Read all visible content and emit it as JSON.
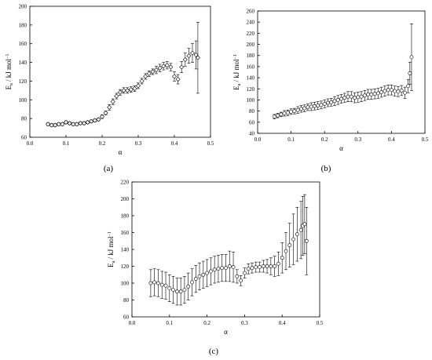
{
  "figure": {
    "panels": [
      {
        "id": "a",
        "label": "(a)"
      },
      {
        "id": "b",
        "label": "(b)"
      },
      {
        "id": "c",
        "label": "(c)"
      }
    ]
  },
  "chart_data": [
    {
      "type": "scatter",
      "panel_label": "(a)",
      "xlabel": "α",
      "ylabel": {
        "main": "E",
        "sub": "a",
        "text": " / kJ mol",
        "sup": "−1"
      },
      "xlim": [
        0.0,
        0.5
      ],
      "ylim": [
        60,
        200
      ],
      "xticks": [
        "0.0",
        "0.1",
        "0.2",
        "0.3",
        "0.4",
        "0.5"
      ],
      "yticks": [
        "60",
        "80",
        "100",
        "120",
        "140",
        "160",
        "180",
        "200"
      ],
      "grid": false,
      "series": [
        {
          "marker": "open-diamond",
          "x": [
            0.05,
            0.06,
            0.07,
            0.08,
            0.09,
            0.1,
            0.11,
            0.12,
            0.13,
            0.14,
            0.15,
            0.16,
            0.17,
            0.18,
            0.19,
            0.2,
            0.21,
            0.22,
            0.23,
            0.24,
            0.25,
            0.26,
            0.27,
            0.28,
            0.29,
            0.3,
            0.31,
            0.32,
            0.33,
            0.34,
            0.35,
            0.36,
            0.37,
            0.38,
            0.39,
            0.4,
            0.41,
            0.42,
            0.43,
            0.44,
            0.45,
            0.46,
            0.465
          ],
          "y": [
            74,
            73,
            73,
            74,
            74,
            76,
            75,
            74,
            74,
            75,
            75,
            76,
            77,
            78,
            79,
            82,
            86,
            92,
            98,
            104,
            108,
            110,
            110,
            111,
            112,
            115,
            120,
            125,
            128,
            130,
            132,
            134,
            136,
            137,
            135,
            125,
            122,
            135,
            143,
            147,
            150,
            148,
            145
          ],
          "err": [
            1.5,
            1.5,
            1.5,
            1.5,
            1.5,
            1.5,
            1.5,
            1.5,
            1.5,
            1.5,
            1.5,
            1.5,
            1.5,
            1.5,
            1.5,
            2,
            2,
            3,
            3,
            3,
            3,
            3,
            3,
            3,
            3,
            3,
            3,
            3,
            3,
            3,
            4,
            4,
            4,
            4,
            4,
            5,
            5,
            6,
            7,
            8,
            10,
            15,
            38
          ]
        }
      ]
    },
    {
      "type": "scatter",
      "panel_label": "(b)",
      "xlabel": "α",
      "ylabel": {
        "main": "E",
        "sub": "a",
        "text": " / kJ mol",
        "sup": "−1"
      },
      "xlim": [
        0.0,
        0.5
      ],
      "ylim": [
        40,
        260
      ],
      "xticks": [
        "0.0",
        "0.1",
        "0.2",
        "0.3",
        "0.4",
        "0.5"
      ],
      "yticks": [
        "40",
        "60",
        "80",
        "100",
        "120",
        "140",
        "160",
        "180",
        "200",
        "220",
        "240",
        "260"
      ],
      "grid": false,
      "series": [
        {
          "marker": "open-circle",
          "x": [
            0.05,
            0.06,
            0.07,
            0.08,
            0.09,
            0.1,
            0.11,
            0.12,
            0.13,
            0.14,
            0.15,
            0.16,
            0.17,
            0.18,
            0.19,
            0.2,
            0.21,
            0.22,
            0.23,
            0.24,
            0.25,
            0.26,
            0.27,
            0.28,
            0.29,
            0.3,
            0.31,
            0.32,
            0.33,
            0.34,
            0.35,
            0.36,
            0.37,
            0.38,
            0.39,
            0.4,
            0.41,
            0.42,
            0.43,
            0.44,
            0.45,
            0.455,
            0.46
          ],
          "y": [
            70,
            72,
            74,
            76,
            77,
            79,
            80,
            82,
            84,
            85,
            87,
            88,
            89,
            90,
            91,
            93,
            95,
            96,
            98,
            100,
            102,
            104,
            106,
            106,
            104,
            105,
            106,
            108,
            110,
            110,
            111,
            112,
            114,
            116,
            118,
            118,
            116,
            115,
            117,
            113,
            125,
            148,
            177
          ],
          "err": [
            4,
            4,
            4,
            5,
            5,
            5,
            5,
            6,
            6,
            6,
            6,
            7,
            7,
            7,
            7,
            7,
            7,
            7,
            8,
            8,
            8,
            8,
            9,
            9,
            9,
            9,
            9,
            9,
            9,
            9,
            9,
            9,
            9,
            9,
            9,
            9,
            9,
            9,
            9,
            10,
            12,
            20,
            60
          ]
        }
      ]
    },
    {
      "type": "scatter",
      "panel_label": "(c)",
      "xlabel": "α",
      "ylabel": {
        "main": "E",
        "sub": "a",
        "text": " / kJ mol",
        "sup": "−1"
      },
      "xlim": [
        0.0,
        0.5
      ],
      "ylim": [
        60,
        220
      ],
      "xticks": [
        "0.0",
        "0.1",
        "0.2",
        "0.3",
        "0.4",
        "0.5"
      ],
      "yticks": [
        "60",
        "80",
        "100",
        "120",
        "140",
        "160",
        "180",
        "200",
        "220"
      ],
      "grid": false,
      "series": [
        {
          "marker": "open-circle",
          "x": [
            0.05,
            0.06,
            0.07,
            0.08,
            0.09,
            0.1,
            0.11,
            0.12,
            0.13,
            0.14,
            0.15,
            0.16,
            0.17,
            0.18,
            0.19,
            0.2,
            0.21,
            0.22,
            0.23,
            0.24,
            0.25,
            0.26,
            0.27,
            0.28,
            0.29,
            0.3,
            0.31,
            0.32,
            0.33,
            0.34,
            0.35,
            0.36,
            0.37,
            0.38,
            0.39,
            0.4,
            0.41,
            0.42,
            0.43,
            0.44,
            0.45,
            0.455,
            0.46,
            0.465
          ],
          "y": [
            100,
            101,
            100,
            98,
            97,
            94,
            92,
            90,
            90,
            92,
            96,
            101,
            105,
            108,
            110,
            112,
            114,
            116,
            117,
            118,
            118,
            120,
            119,
            108,
            103,
            112,
            117,
            118,
            119,
            119,
            120,
            120,
            120,
            120,
            123,
            130,
            138,
            145,
            152,
            158,
            163,
            168,
            170,
            150
          ],
          "err": [
            16,
            16,
            16,
            16,
            16,
            16,
            16,
            16,
            16,
            16,
            16,
            16,
            16,
            16,
            16,
            16,
            16,
            16,
            16,
            16,
            16,
            18,
            18,
            8,
            6,
            6,
            6,
            6,
            6,
            6,
            7,
            8,
            10,
            12,
            14,
            18,
            22,
            26,
            30,
            32,
            34,
            35,
            35,
            40
          ]
        }
      ]
    }
  ]
}
